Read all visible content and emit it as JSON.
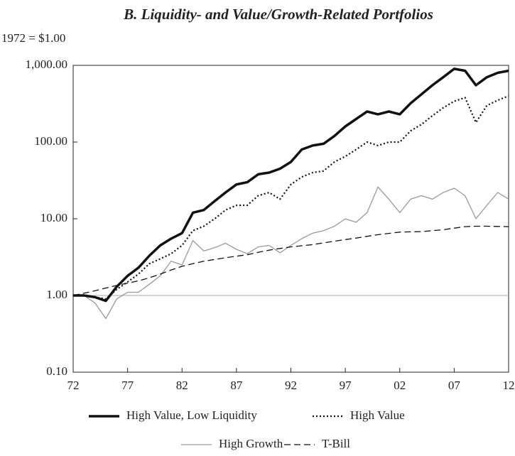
{
  "chart_data": {
    "type": "line",
    "title": "B. Liquidity- and Value/Growth-Related Portfolios",
    "y_label": "1972 = $1.00",
    "log_scale": true,
    "hline": 1,
    "x": [
      1972,
      1973,
      1974,
      1975,
      1976,
      1977,
      1978,
      1979,
      1980,
      1981,
      1982,
      1983,
      1984,
      1985,
      1986,
      1987,
      1988,
      1989,
      1990,
      1991,
      1992,
      1993,
      1994,
      1995,
      1996,
      1997,
      1998,
      1999,
      2000,
      2001,
      2002,
      2003,
      2004,
      2005,
      2006,
      2007,
      2008,
      2009,
      2010,
      2011,
      2012
    ],
    "xlim": [
      1972,
      2012
    ],
    "xticks": [
      {
        "value": 1972,
        "label": "72"
      },
      {
        "value": 1977,
        "label": "77"
      },
      {
        "value": 1982,
        "label": "82"
      },
      {
        "value": 1987,
        "label": "87"
      },
      {
        "value": 1992,
        "label": "92"
      },
      {
        "value": 1997,
        "label": "97"
      },
      {
        "value": 2002,
        "label": "02"
      },
      {
        "value": 2007,
        "label": "07"
      },
      {
        "value": 2012,
        "label": "12"
      }
    ],
    "ylim": [
      0.1,
      1000
    ],
    "yticks": [
      {
        "value": 0.1,
        "label": "0.10"
      },
      {
        "value": 1,
        "label": "1.00"
      },
      {
        "value": 10,
        "label": "10.00"
      },
      {
        "value": 100,
        "label": "100.00"
      },
      {
        "value": 1000,
        "label": "1,000.00"
      }
    ],
    "series": [
      {
        "name": "High Value, Low Liquidity",
        "color": "#111111",
        "width": 3.5,
        "dash": "none",
        "values": [
          1.0,
          1.0,
          0.95,
          0.85,
          1.3,
          1.8,
          2.3,
          3.3,
          4.5,
          5.5,
          6.5,
          12,
          13,
          17,
          22,
          28,
          30,
          38,
          40,
          45,
          55,
          80,
          90,
          95,
          120,
          160,
          200,
          250,
          230,
          250,
          230,
          320,
          420,
          550,
          700,
          900,
          850,
          550,
          700,
          800,
          850
        ]
      },
      {
        "name": "High Value",
        "color": "#111111",
        "width": 2.2,
        "dash": "2 3",
        "values": [
          1.0,
          1.0,
          0.95,
          0.9,
          1.2,
          1.5,
          1.9,
          2.6,
          3,
          3.5,
          4.5,
          7,
          8,
          10,
          13,
          15,
          15,
          20,
          22,
          18,
          28,
          35,
          40,
          42,
          55,
          65,
          80,
          100,
          90,
          100,
          100,
          140,
          170,
          220,
          280,
          340,
          380,
          180,
          300,
          350,
          400
        ]
      },
      {
        "name": "High Growth",
        "color": "#999999",
        "width": 1.3,
        "dash": "none",
        "values": [
          1.0,
          1.0,
          0.8,
          0.5,
          0.9,
          1.1,
          1.1,
          1.4,
          1.8,
          2.8,
          2.5,
          5.2,
          3.8,
          4.2,
          4.8,
          4.0,
          3.5,
          4.3,
          4.5,
          3.6,
          4.5,
          5.5,
          6.5,
          7,
          8,
          10,
          9,
          12,
          26,
          18,
          12,
          18,
          20,
          18,
          22,
          25,
          20,
          10,
          15,
          22,
          18
        ]
      },
      {
        "name": "T-Bill",
        "color": "#111111",
        "width": 1.3,
        "dash": "9 5",
        "values": [
          1.0,
          1.07,
          1.15,
          1.25,
          1.35,
          1.45,
          1.55,
          1.7,
          1.9,
          2.15,
          2.4,
          2.6,
          2.8,
          2.95,
          3.1,
          3.25,
          3.4,
          3.65,
          3.9,
          4.1,
          4.3,
          4.45,
          4.6,
          4.85,
          5.1,
          5.35,
          5.6,
          5.9,
          6.2,
          6.45,
          6.7,
          6.75,
          6.8,
          7.0,
          7.2,
          7.55,
          7.9,
          8.0,
          8.0,
          7.95,
          7.9
        ]
      }
    ]
  }
}
